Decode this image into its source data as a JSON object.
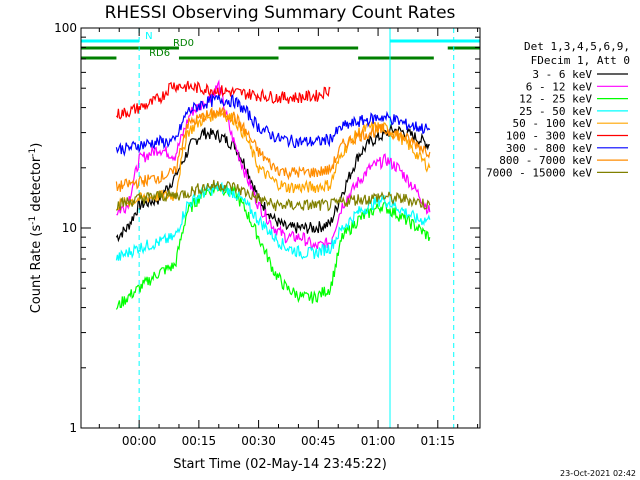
{
  "chart_data": {
    "type": "line",
    "title": "RHESSI Observing Summary Count Rates",
    "xlabel": "Start Time (02-May-14 23:45:22)",
    "ylabel_main": "Count Rate (s",
    "ylabel_sup1": "-1",
    "ylabel_mid": " detector",
    "ylabel_sup2": "-1",
    "ylabel_end": ")",
    "y_scale": "log",
    "ylim": [
      1,
      100
    ],
    "xlim_minutes": [
      -14.6,
      85.6
    ],
    "x_ticks": [
      {
        "minutes": 0,
        "label": "00:00"
      },
      {
        "minutes": 15,
        "label": "00:15"
      },
      {
        "minutes": 30,
        "label": "00:30"
      },
      {
        "minutes": 45,
        "label": "00:45"
      },
      {
        "minutes": 60,
        "label": "01:00"
      },
      {
        "minutes": 75,
        "label": "01:15"
      }
    ],
    "y_ticks": [
      {
        "value": 1,
        "label": "1"
      },
      {
        "value": 10,
        "label": "10"
      },
      {
        "value": 100,
        "label": "100"
      }
    ],
    "legend_header": [
      "Det 1,3,4,5,6,9,",
      "FDecim 1, Att 0"
    ],
    "legend_placement": "right",
    "series": [
      {
        "name": "3 - 6 keV",
        "color": "#000000",
        "values": [
          [
            -5.7,
            9
          ],
          [
            -3,
            10
          ],
          [
            0,
            13
          ],
          [
            5,
            14
          ],
          [
            9,
            18
          ],
          [
            13,
            26
          ],
          [
            16,
            30
          ],
          [
            20,
            29
          ],
          [
            24,
            26
          ],
          [
            27,
            20
          ],
          [
            30,
            14
          ],
          [
            34,
            11
          ],
          [
            37,
            10
          ],
          [
            41,
            10
          ],
          [
            44,
            10
          ],
          [
            48,
            10.5
          ],
          [
            51,
            15
          ],
          [
            55,
            23
          ],
          [
            58,
            27
          ],
          [
            61,
            29
          ],
          [
            64,
            31
          ],
          [
            67,
            30
          ],
          [
            70,
            28
          ],
          [
            73,
            26
          ]
        ]
      },
      {
        "name": "6 - 12 keV",
        "color": "#ff00ff",
        "values": [
          [
            -5.7,
            12
          ],
          [
            -3,
            13
          ],
          [
            0,
            22
          ],
          [
            5,
            25
          ],
          [
            9,
            23
          ],
          [
            13,
            38
          ],
          [
            17,
            43
          ],
          [
            20,
            52
          ],
          [
            23,
            30
          ],
          [
            27,
            18
          ],
          [
            30,
            13
          ],
          [
            34,
            10
          ],
          [
            37,
            9
          ],
          [
            41,
            9
          ],
          [
            44,
            8
          ],
          [
            48,
            8.5
          ],
          [
            51,
            13
          ],
          [
            55,
            17
          ],
          [
            58,
            20
          ],
          [
            62,
            22
          ],
          [
            65,
            20
          ],
          [
            68,
            17
          ],
          [
            71,
            14
          ],
          [
            73,
            12
          ]
        ]
      },
      {
        "name": "12 - 25 keV",
        "color": "#00ff00",
        "values": [
          [
            -5.7,
            4
          ],
          [
            -3,
            4.5
          ],
          [
            0,
            5
          ],
          [
            5,
            6
          ],
          [
            9,
            6.5
          ],
          [
            12,
            12
          ],
          [
            16,
            15
          ],
          [
            20,
            16
          ],
          [
            24,
            15
          ],
          [
            27,
            12
          ],
          [
            30,
            9
          ],
          [
            34,
            6
          ],
          [
            37,
            5
          ],
          [
            41,
            4.5
          ],
          [
            44,
            4.5
          ],
          [
            48,
            5
          ],
          [
            51,
            9
          ],
          [
            55,
            11
          ],
          [
            58,
            12
          ],
          [
            61,
            13
          ],
          [
            64,
            12
          ],
          [
            67,
            11
          ],
          [
            70,
            10
          ],
          [
            73,
            9
          ]
        ]
      },
      {
        "name": "25 - 50 keV",
        "color": "#00ffff",
        "values": [
          [
            -5.7,
            7
          ],
          [
            -3,
            7.5
          ],
          [
            0,
            8
          ],
          [
            5,
            8.5
          ],
          [
            9,
            9
          ],
          [
            12,
            13
          ],
          [
            16,
            15
          ],
          [
            20,
            16
          ],
          [
            24,
            15
          ],
          [
            27,
            13
          ],
          [
            30,
            11
          ],
          [
            34,
            9
          ],
          [
            37,
            8
          ],
          [
            41,
            7.5
          ],
          [
            44,
            7.5
          ],
          [
            48,
            8
          ],
          [
            51,
            10
          ],
          [
            55,
            12
          ],
          [
            58,
            13
          ],
          [
            61,
            14
          ],
          [
            64,
            13
          ],
          [
            67,
            12
          ],
          [
            70,
            11
          ],
          [
            73,
            11
          ]
        ]
      },
      {
        "name": "50 - 100 keV",
        "color": "#ffa500",
        "values": [
          [
            -5.7,
            13
          ],
          [
            -3,
            13.5
          ],
          [
            0,
            14
          ],
          [
            5,
            14.5
          ],
          [
            9,
            14.5
          ],
          [
            12,
            30
          ],
          [
            16,
            35
          ],
          [
            20,
            38
          ],
          [
            24,
            35
          ],
          [
            27,
            28
          ],
          [
            30,
            20
          ],
          [
            34,
            17
          ],
          [
            37,
            16
          ],
          [
            41,
            16
          ],
          [
            44,
            16
          ],
          [
            48,
            16.5
          ],
          [
            51,
            24
          ],
          [
            55,
            30
          ],
          [
            58,
            32
          ],
          [
            61,
            32
          ],
          [
            64,
            30
          ],
          [
            67,
            27
          ],
          [
            70,
            23
          ],
          [
            73,
            20
          ]
        ]
      },
      {
        "name": "100 - 300 keV",
        "color": "#ff0000",
        "values": [
          [
            -5.7,
            37
          ],
          [
            -3,
            38
          ],
          [
            0,
            40
          ],
          [
            3,
            42
          ],
          [
            6,
            46
          ],
          [
            8,
            52
          ],
          [
            35,
            45
          ],
          [
            40,
            45
          ],
          [
            45,
            46
          ],
          [
            48,
            50
          ]
        ]
      },
      {
        "name": "300 - 800 keV",
        "color": "#0000ff",
        "values": [
          [
            -5.7,
            25
          ],
          [
            -3,
            25
          ],
          [
            0,
            26
          ],
          [
            5,
            27
          ],
          [
            9,
            27
          ],
          [
            12,
            38
          ],
          [
            16,
            42
          ],
          [
            20,
            44
          ],
          [
            24,
            43
          ],
          [
            27,
            38
          ],
          [
            30,
            32
          ],
          [
            35,
            28
          ],
          [
            40,
            27
          ],
          [
            45,
            27
          ],
          [
            48,
            28
          ],
          [
            51,
            32
          ],
          [
            55,
            34
          ],
          [
            58,
            35
          ],
          [
            61,
            36
          ],
          [
            64,
            35
          ],
          [
            67,
            33
          ],
          [
            70,
            32
          ],
          [
            73,
            31
          ]
        ]
      },
      {
        "name": "800 - 7000 keV",
        "color": "#ff8c00",
        "values": [
          [
            -5.7,
            16
          ],
          [
            -3,
            16.5
          ],
          [
            0,
            17
          ],
          [
            5,
            18
          ],
          [
            9,
            19
          ],
          [
            12,
            33
          ],
          [
            16,
            36
          ],
          [
            20,
            38
          ],
          [
            24,
            36
          ],
          [
            27,
            30
          ],
          [
            30,
            24
          ],
          [
            34,
            20
          ],
          [
            37,
            19
          ],
          [
            41,
            19
          ],
          [
            44,
            19
          ],
          [
            48,
            19.5
          ],
          [
            51,
            26
          ],
          [
            55,
            29
          ],
          [
            58,
            30
          ],
          [
            61,
            31
          ],
          [
            64,
            30
          ],
          [
            67,
            28
          ],
          [
            70,
            26
          ],
          [
            73,
            24
          ]
        ]
      },
      {
        "name": "7000 - 15000 keV",
        "color": "#808000",
        "values": [
          [
            -5.7,
            13
          ],
          [
            -3,
            13.5
          ],
          [
            0,
            14
          ],
          [
            5,
            14.5
          ],
          [
            9,
            14.5
          ],
          [
            12,
            15
          ],
          [
            16,
            16
          ],
          [
            20,
            16.5
          ],
          [
            24,
            16
          ],
          [
            27,
            15
          ],
          [
            30,
            14
          ],
          [
            34,
            13
          ],
          [
            37,
            13
          ],
          [
            41,
            13
          ],
          [
            44,
            13
          ],
          [
            48,
            13
          ],
          [
            51,
            13.5
          ],
          [
            55,
            14
          ],
          [
            58,
            14
          ],
          [
            61,
            14.5
          ],
          [
            64,
            14
          ],
          [
            67,
            14
          ],
          [
            70,
            13.5
          ],
          [
            73,
            13
          ]
        ]
      }
    ],
    "flags": [
      {
        "name": "N",
        "color": "#00ffff",
        "label_minutes": 1.5,
        "segments": [
          [
            -14.6,
            0
          ],
          [
            63,
            85.6
          ]
        ]
      },
      {
        "name": "RD0",
        "color": "#008000",
        "label_minutes": 8.5,
        "segments": [
          [
            -14.6,
            10
          ],
          [
            35,
            55
          ],
          [
            77.5,
            85.6
          ]
        ]
      },
      {
        "name": "RD6",
        "color": "#008000",
        "label_minutes": 2.5,
        "segments": [
          [
            -14.6,
            -5.7
          ],
          [
            10,
            35
          ],
          [
            55,
            74
          ]
        ]
      }
    ],
    "vertical_markers": [
      {
        "minutes": -14.6,
        "color": "#00ffff",
        "style": "solid"
      },
      {
        "minutes": 0,
        "color": "#00ffff",
        "style": "dashed"
      },
      {
        "minutes": 63,
        "color": "#00ffff",
        "style": "solid"
      },
      {
        "minutes": 79,
        "color": "#00ffff",
        "style": "dashed"
      }
    ],
    "timestamp": "23-Oct-2021 02:42"
  }
}
